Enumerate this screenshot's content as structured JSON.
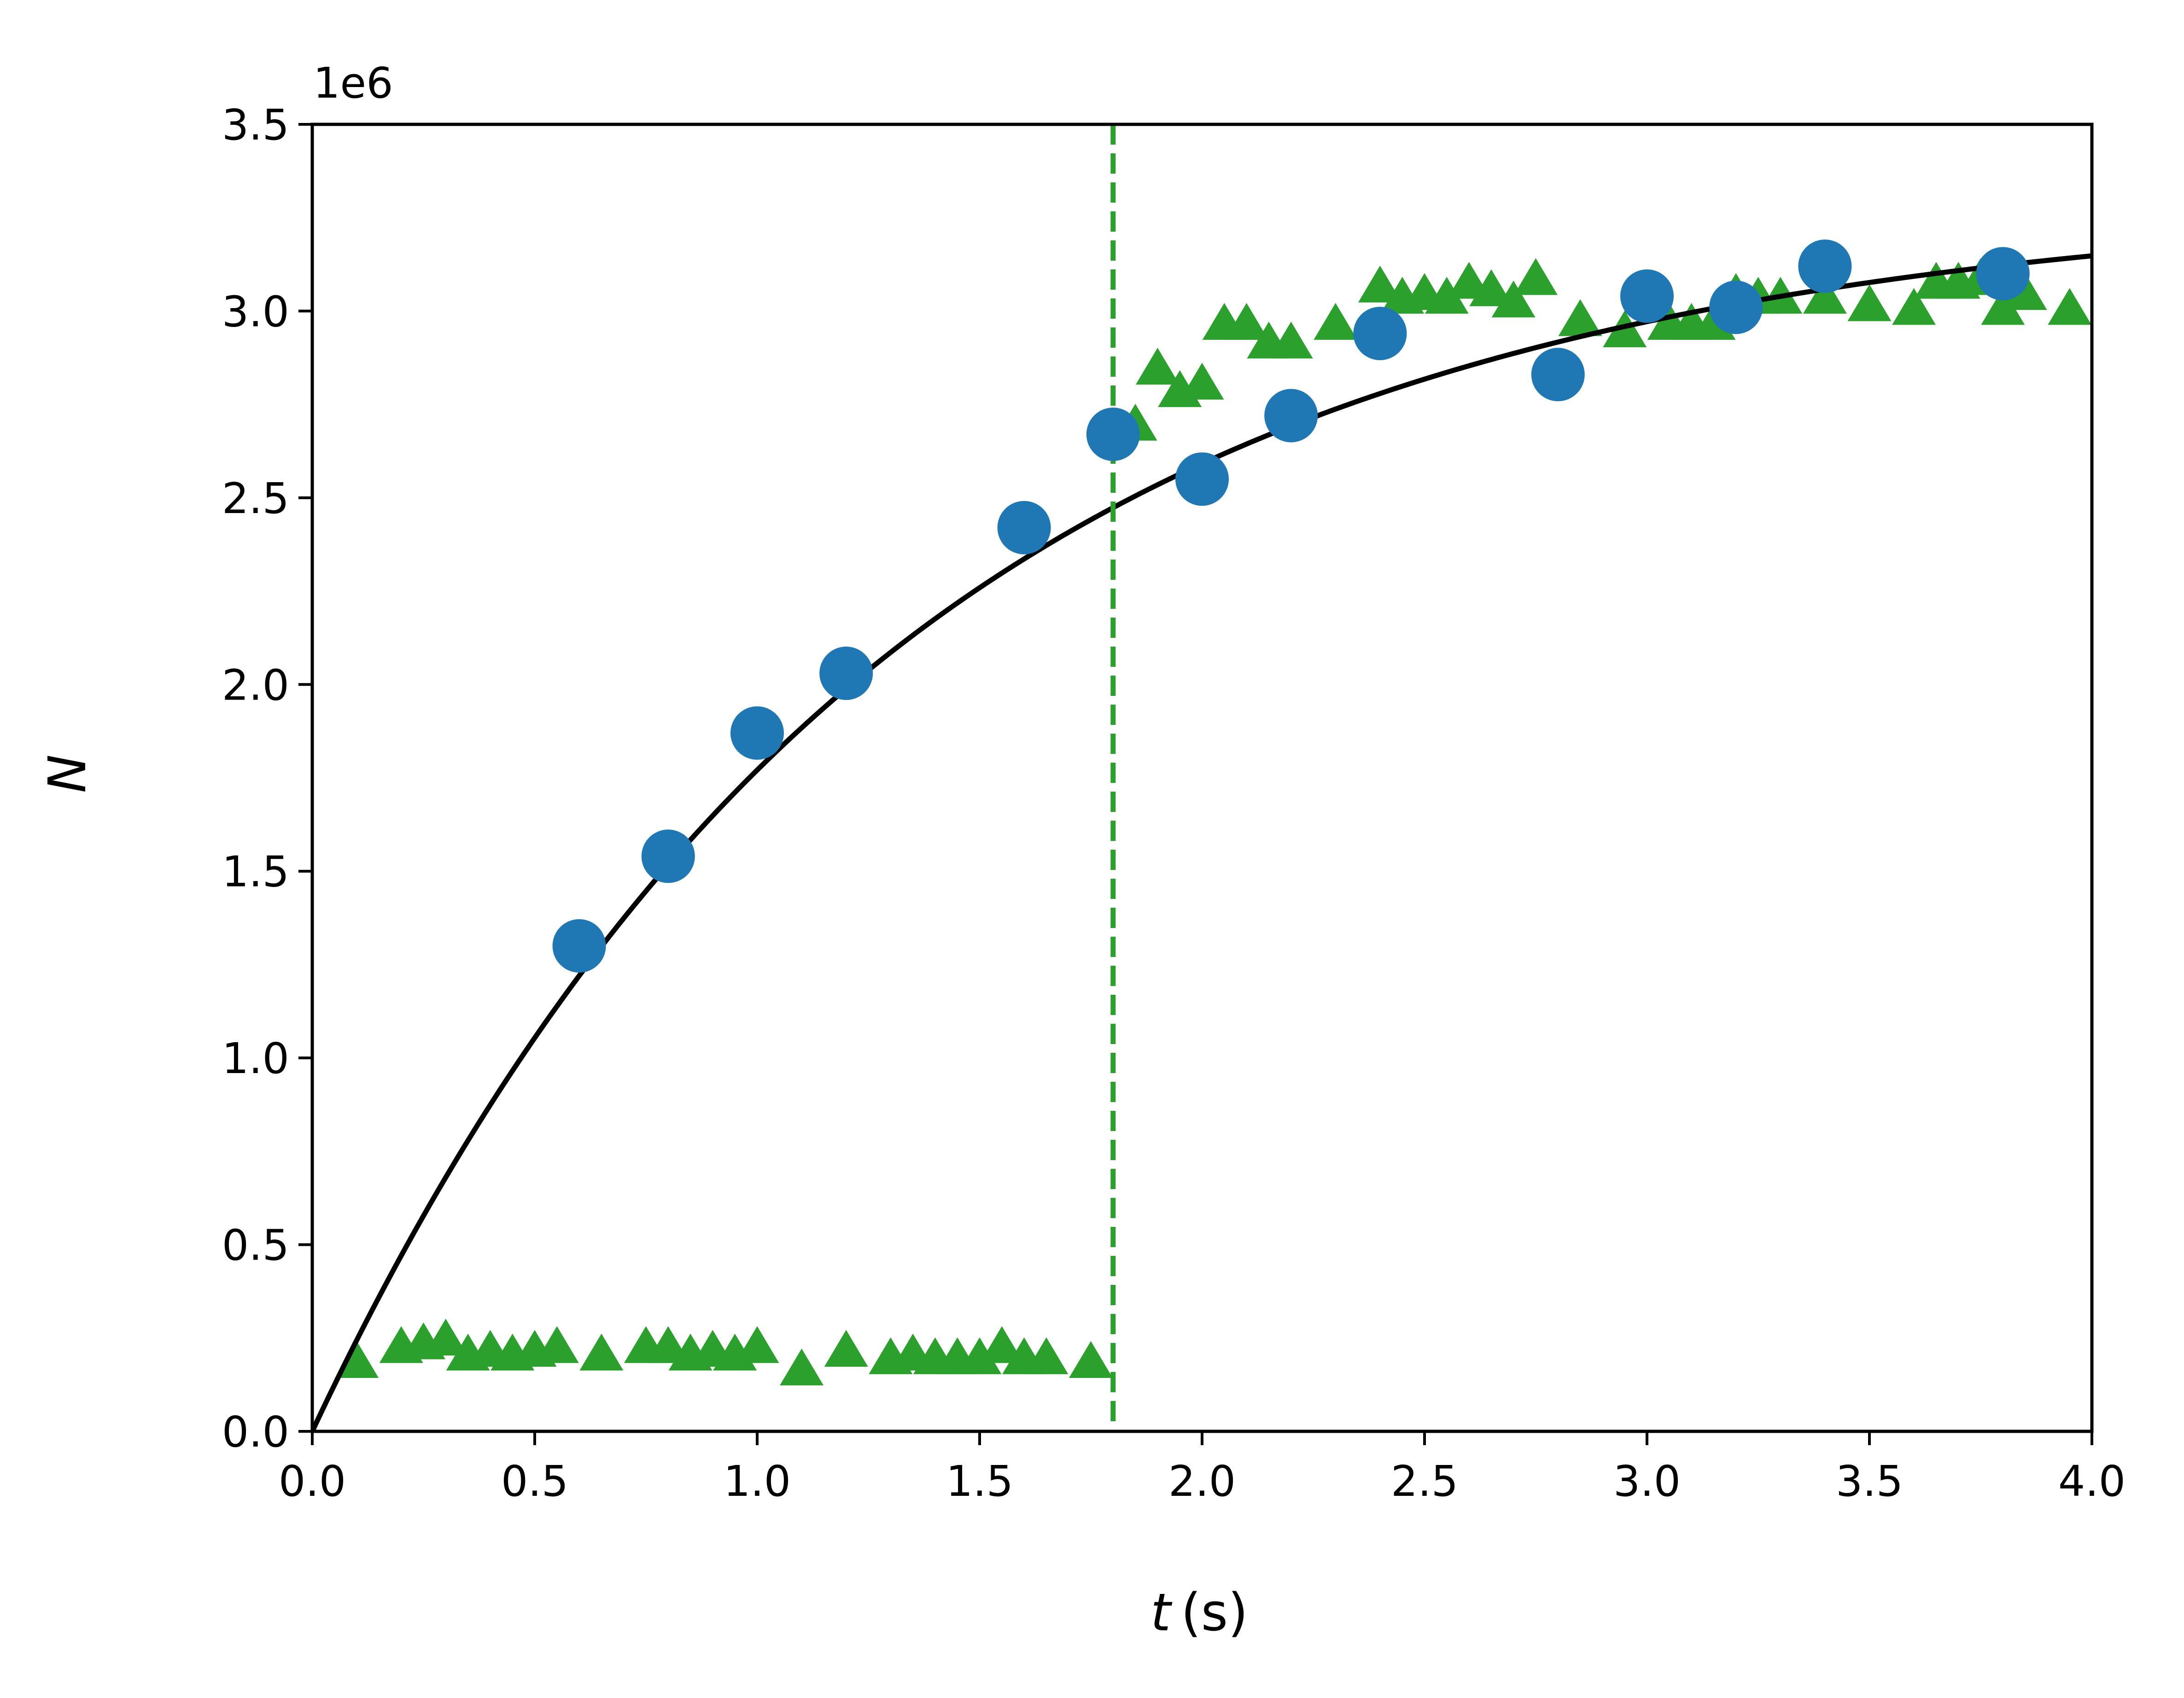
{
  "chart_data": {
    "type": "scatter",
    "title": "",
    "xlabel_var": "t",
    "xlabel_unit": "(s)",
    "ylabel": "N",
    "y_offset_label": "1e6",
    "xlim": [
      0.0,
      4.0
    ],
    "ylim": [
      0.0,
      3.5
    ],
    "x_ticks": [
      0.0,
      0.5,
      1.0,
      1.5,
      2.0,
      2.5,
      3.0,
      3.5,
      4.0
    ],
    "x_tick_labels": [
      "0.0",
      "0.5",
      "1.0",
      "1.5",
      "2.0",
      "2.5",
      "3.0",
      "3.5",
      "4.0"
    ],
    "y_ticks": [
      0.0,
      0.5,
      1.0,
      1.5,
      2.0,
      2.5,
      3.0,
      3.5
    ],
    "y_tick_labels": [
      "0.0",
      "0.5",
      "1.0",
      "1.5",
      "2.0",
      "2.5",
      "3.0",
      "3.5"
    ],
    "grid": false,
    "colors": {
      "circles": "#1f77b4",
      "triangles": "#2ca02c",
      "fit": "#000000",
      "vline": "#2ca02c"
    },
    "fit_curve": {
      "N_max": 3.3,
      "tau": 1.3
    },
    "vertical_line_x": 1.8,
    "series": [
      {
        "marker": "circle",
        "x": [
          0.6,
          0.8,
          1.0,
          1.2,
          1.6,
          1.8,
          2.0,
          2.2,
          2.4,
          2.8,
          3.0,
          3.2,
          3.4,
          3.8
        ],
        "y": [
          1.3,
          1.54,
          1.87,
          2.03,
          2.42,
          2.67,
          2.55,
          2.72,
          2.94,
          2.83,
          3.04,
          3.01,
          3.12,
          3.1
        ]
      },
      {
        "marker": "triangle",
        "x": [
          0.1,
          0.2,
          0.25,
          0.3,
          0.35,
          0.4,
          0.45,
          0.5,
          0.55,
          0.65,
          0.75,
          0.8,
          0.85,
          0.9,
          0.95,
          1.0,
          1.1,
          1.2,
          1.3,
          1.35,
          1.4,
          1.45,
          1.5,
          1.55,
          1.6,
          1.65,
          1.75,
          1.85,
          1.9,
          1.95,
          2.0,
          2.05,
          2.1,
          2.15,
          2.2,
          2.3,
          2.4,
          2.45,
          2.5,
          2.55,
          2.6,
          2.65,
          2.7,
          2.75,
          2.85,
          2.95,
          3.0,
          3.05,
          3.1,
          3.15,
          3.2,
          3.25,
          3.3,
          3.4,
          3.5,
          3.6,
          3.65,
          3.7,
          3.75,
          3.8,
          3.85,
          3.95
        ],
        "y": [
          0.18,
          0.22,
          0.23,
          0.24,
          0.2,
          0.21,
          0.2,
          0.21,
          0.22,
          0.2,
          0.22,
          0.22,
          0.2,
          0.21,
          0.2,
          0.22,
          0.16,
          0.21,
          0.19,
          0.2,
          0.19,
          0.19,
          0.19,
          0.22,
          0.19,
          0.19,
          0.18,
          2.69,
          2.84,
          2.78,
          2.8,
          2.96,
          2.96,
          2.91,
          2.91,
          2.96,
          3.06,
          3.03,
          3.04,
          3.03,
          3.07,
          3.05,
          3.02,
          3.08,
          2.97,
          2.94,
          3.03,
          2.96,
          2.96,
          2.96,
          3.04,
          3.03,
          3.03,
          3.03,
          3.01,
          3.0,
          3.07,
          3.07,
          3.08,
          3.0,
          3.04,
          3.0
        ]
      }
    ]
  }
}
